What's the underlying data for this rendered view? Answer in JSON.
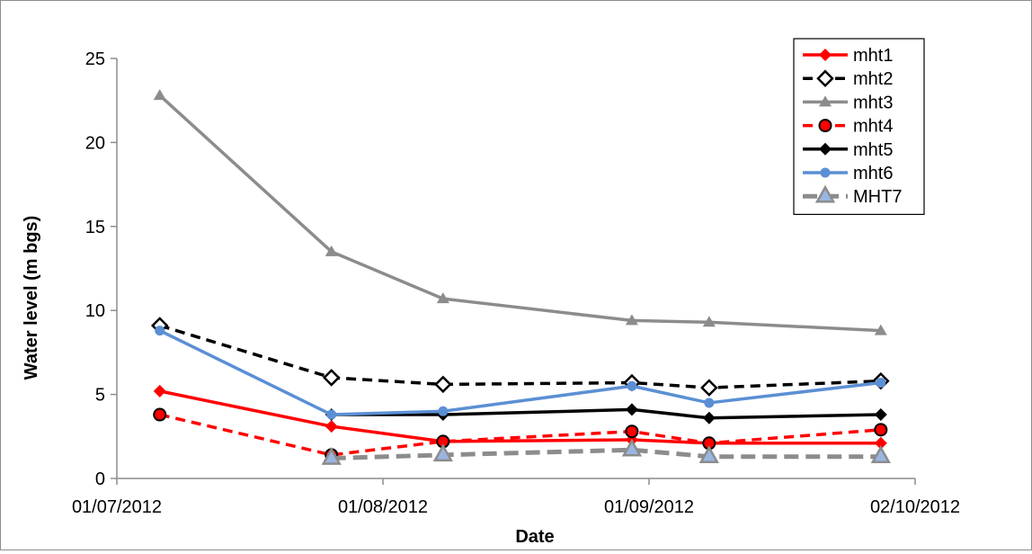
{
  "chart_data": {
    "type": "line",
    "xlabel": "Date",
    "ylabel": "Water level (m bgs)",
    "x_axis": {
      "type": "date",
      "min": "2012-07-01",
      "max": "2012-10-02",
      "ticks": [
        "2012-07-01",
        "2012-08-01",
        "2012-09-01",
        "2012-10-02"
      ],
      "tick_labels": [
        "01/07/2012",
        "01/08/2012",
        "01/09/2012",
        "02/10/2012"
      ]
    },
    "y_axis": {
      "min": 0,
      "max": 25,
      "ticks": [
        0,
        5,
        10,
        15,
        20,
        25
      ],
      "tick_labels": [
        "0",
        "5",
        "10",
        "15",
        "20",
        "25"
      ]
    },
    "grid": false,
    "legend_position": "top-right",
    "series": [
      {
        "name": "mht1",
        "color": "#ff0000",
        "dash": "solid",
        "marker": "diamond-filled",
        "x": [
          "2012-07-06",
          "2012-07-26",
          "2012-08-08",
          "2012-08-30",
          "2012-09-08",
          "2012-09-28"
        ],
        "y": [
          5.2,
          3.1,
          2.2,
          2.3,
          2.1,
          2.1
        ]
      },
      {
        "name": "mht2",
        "color": "#000000",
        "dash": "dashed",
        "marker": "diamond-open",
        "x": [
          "2012-07-06",
          "2012-07-26",
          "2012-08-08",
          "2012-08-30",
          "2012-09-08",
          "2012-09-28"
        ],
        "y": [
          9.1,
          6.0,
          5.6,
          5.7,
          5.4,
          5.8
        ]
      },
      {
        "name": "mht3",
        "color": "#8c8c8c",
        "dash": "solid",
        "marker": "triangle-filled",
        "x": [
          "2012-07-06",
          "2012-07-26",
          "2012-08-08",
          "2012-08-30",
          "2012-09-08",
          "2012-09-28"
        ],
        "y": [
          22.8,
          13.5,
          10.7,
          9.4,
          9.3,
          8.8
        ]
      },
      {
        "name": "mht4",
        "color": "#ff0000",
        "dash": "dashed",
        "marker": "circle-red",
        "x": [
          "2012-07-06",
          "2012-07-26",
          "2012-08-08",
          "2012-08-30",
          "2012-09-08",
          "2012-09-28"
        ],
        "y": [
          3.8,
          1.4,
          2.2,
          2.8,
          2.1,
          2.9
        ]
      },
      {
        "name": "mht5",
        "color": "#000000",
        "dash": "solid",
        "marker": "diamond-filled",
        "x": [
          "2012-07-26",
          "2012-08-08",
          "2012-08-30",
          "2012-09-08",
          "2012-09-28"
        ],
        "y": [
          3.8,
          3.8,
          4.1,
          3.6,
          3.8
        ]
      },
      {
        "name": "mht6",
        "color": "#5b8fd4",
        "dash": "solid",
        "marker": "circle-filled",
        "x": [
          "2012-07-06",
          "2012-07-26",
          "2012-08-08",
          "2012-08-30",
          "2012-09-08",
          "2012-09-28"
        ],
        "y": [
          8.8,
          3.8,
          4.0,
          5.5,
          4.5,
          5.7
        ]
      },
      {
        "name": "MHT7",
        "color": "#8c8c8c",
        "dash": "dashed-thick",
        "marker": "triangle-blue",
        "x": [
          "2012-07-26",
          "2012-08-08",
          "2012-08-30",
          "2012-09-08",
          "2012-09-28"
        ],
        "y": [
          1.2,
          1.4,
          1.7,
          1.3,
          1.3
        ]
      }
    ]
  }
}
